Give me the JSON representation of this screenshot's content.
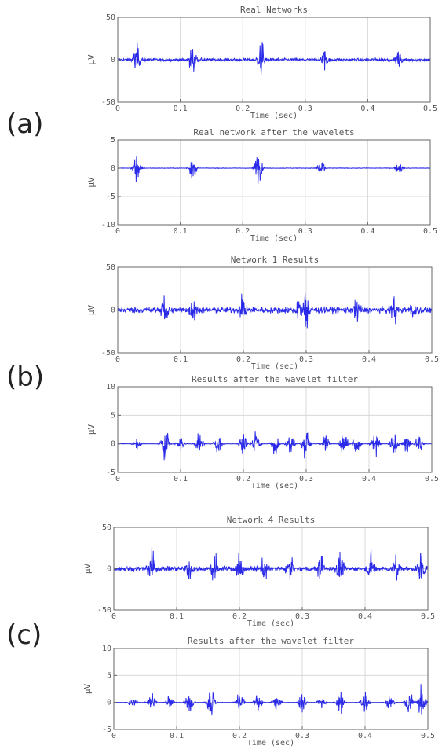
{
  "panel_labels": [
    "(a)",
    "(b)",
    "(c)"
  ],
  "chart_data": [
    {
      "type": "line",
      "title": "Real Networks",
      "xlabel": "Time (sec)",
      "ylabel": "µV",
      "xlim": [
        0,
        0.5
      ],
      "ylim": [
        -50,
        50
      ],
      "xticks": [
        "0",
        "0.1",
        "0.2",
        "0.3",
        "0.4",
        "0.5"
      ],
      "yticks": [
        "50",
        "0",
        "-50"
      ],
      "grid": true,
      "series": [
        {
          "color": "#2a2ae8",
          "base_noise": 3,
          "bursts": [
            {
              "x": 0.03,
              "amp": 25
            },
            {
              "x": 0.12,
              "amp": 22
            },
            {
              "x": 0.23,
              "amp": 28
            },
            {
              "x": 0.33,
              "amp": 18
            },
            {
              "x": 0.45,
              "amp": 15
            }
          ]
        }
      ]
    },
    {
      "type": "line",
      "title": "Real network after the wavelets",
      "xlabel": "Time (sec)",
      "ylabel": "µV",
      "xlim": [
        0,
        0.5
      ],
      "ylim": [
        -10,
        5
      ],
      "xticks": [
        "0",
        "0.1",
        "0.2",
        "0.3",
        "0.4",
        "0.5"
      ],
      "yticks": [
        "5",
        "0",
        "-5",
        "-10"
      ],
      "grid": true,
      "series": [
        {
          "color": "#2a2ae8",
          "base_noise": 0.08,
          "bursts": [
            {
              "x": 0.03,
              "amp": 3.5
            },
            {
              "x": 0.12,
              "amp": 2.8
            },
            {
              "x": 0.225,
              "amp": 4.0
            },
            {
              "x": 0.325,
              "amp": 2.4
            },
            {
              "x": 0.45,
              "amp": 1.6
            }
          ]
        }
      ]
    },
    {
      "type": "line",
      "title": "Network 1 Results",
      "xlabel": "Time (sec)",
      "ylabel": "µV",
      "xlim": [
        0,
        0.5
      ],
      "ylim": [
        -50,
        50
      ],
      "xticks": [
        "0",
        "0.1",
        "0.2",
        "0.3",
        "0.4",
        "0.5"
      ],
      "yticks": [
        "50",
        "0",
        "-50"
      ],
      "grid": true,
      "series": [
        {
          "color": "#2a2ae8",
          "base_noise": 6,
          "bursts": [
            {
              "x": 0.075,
              "amp": 35
            },
            {
              "x": 0.12,
              "amp": 22
            },
            {
              "x": 0.2,
              "amp": 28
            },
            {
              "x": 0.29,
              "amp": 24
            },
            {
              "x": 0.3,
              "amp": 35
            },
            {
              "x": 0.38,
              "amp": 22
            },
            {
              "x": 0.44,
              "amp": 25
            },
            {
              "x": 0.47,
              "amp": 20
            }
          ]
        }
      ]
    },
    {
      "type": "line",
      "title": "Results after the wavelet filter",
      "xlabel": "Time (sec)",
      "ylabel": "µV",
      "xlim": [
        0,
        0.5
      ],
      "ylim": [
        -5,
        10
      ],
      "xticks": [
        "0",
        "0.1",
        "0.2",
        "0.3",
        "0.4",
        "0.5"
      ],
      "yticks": [
        "10",
        "5",
        "0",
        "-5"
      ],
      "grid": true,
      "series": [
        {
          "color": "#2a2ae8",
          "base_noise": 0.05,
          "bursts": [
            {
              "x": 0.03,
              "amp": 1.5
            },
            {
              "x": 0.075,
              "amp": 5.5
            },
            {
              "x": 0.1,
              "amp": 2
            },
            {
              "x": 0.13,
              "amp": 2.5
            },
            {
              "x": 0.16,
              "amp": 3
            },
            {
              "x": 0.2,
              "amp": 3.5
            },
            {
              "x": 0.22,
              "amp": 3
            },
            {
              "x": 0.25,
              "amp": 2.5
            },
            {
              "x": 0.275,
              "amp": 2.8
            },
            {
              "x": 0.3,
              "amp": 4
            },
            {
              "x": 0.33,
              "amp": 2.5
            },
            {
              "x": 0.36,
              "amp": 3
            },
            {
              "x": 0.38,
              "amp": 2.5
            },
            {
              "x": 0.41,
              "amp": 3.5
            },
            {
              "x": 0.44,
              "amp": 3
            },
            {
              "x": 0.46,
              "amp": 2
            },
            {
              "x": 0.48,
              "amp": 2.5
            }
          ]
        }
      ]
    },
    {
      "type": "line",
      "title": "Network 4 Results",
      "xlabel": "Time (sec)",
      "ylabel": "µV",
      "xlim": [
        0,
        0.5
      ],
      "ylim": [
        -50,
        50
      ],
      "xticks": [
        "0",
        "0.1",
        "0.2",
        "0.3",
        "0.4",
        "0.5"
      ],
      "yticks": [
        "50",
        "0",
        "-50"
      ],
      "grid": true,
      "series": [
        {
          "color": "#2a2ae8",
          "base_noise": 5,
          "bursts": [
            {
              "x": 0.06,
              "amp": 32
            },
            {
              "x": 0.12,
              "amp": 22
            },
            {
              "x": 0.16,
              "amp": 28
            },
            {
              "x": 0.2,
              "amp": 30
            },
            {
              "x": 0.24,
              "amp": 25
            },
            {
              "x": 0.28,
              "amp": 22
            },
            {
              "x": 0.33,
              "amp": 24
            },
            {
              "x": 0.36,
              "amp": 26
            },
            {
              "x": 0.41,
              "amp": 25
            },
            {
              "x": 0.45,
              "amp": 26
            },
            {
              "x": 0.49,
              "amp": 32
            }
          ]
        }
      ]
    },
    {
      "type": "line",
      "title": "Results after the wavelet filter",
      "xlabel": "Time (sec)",
      "ylabel": "µV",
      "xlim": [
        0,
        0.5
      ],
      "ylim": [
        -5,
        10
      ],
      "xticks": [
        "0",
        "0.1",
        "0.2",
        "0.3",
        "0.4",
        "0.5"
      ],
      "yticks": [
        "10",
        "5",
        "0",
        "-5"
      ],
      "grid": true,
      "series": [
        {
          "color": "#2a2ae8",
          "base_noise": 0.05,
          "bursts": [
            {
              "x": 0.03,
              "amp": 1.5
            },
            {
              "x": 0.06,
              "amp": 4
            },
            {
              "x": 0.09,
              "amp": 2
            },
            {
              "x": 0.12,
              "amp": 2.5
            },
            {
              "x": 0.155,
              "amp": 4.5
            },
            {
              "x": 0.2,
              "amp": 4
            },
            {
              "x": 0.23,
              "amp": 2.5
            },
            {
              "x": 0.26,
              "amp": 3
            },
            {
              "x": 0.3,
              "amp": 2.5
            },
            {
              "x": 0.33,
              "amp": 2
            },
            {
              "x": 0.36,
              "amp": 3
            },
            {
              "x": 0.4,
              "amp": 3.5
            },
            {
              "x": 0.44,
              "amp": 2.5
            },
            {
              "x": 0.47,
              "amp": 3
            },
            {
              "x": 0.49,
              "amp": 5
            }
          ]
        }
      ]
    }
  ]
}
